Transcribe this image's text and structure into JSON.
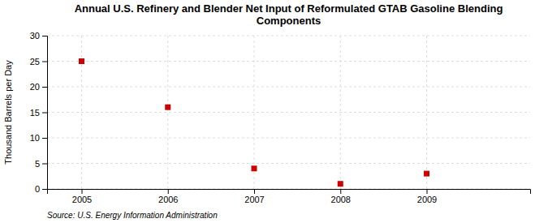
{
  "chart_data": {
    "type": "scatter",
    "title": "Annual U.S. Refinery and Blender Net Input of Reformulated GTAB Gasoline Blending\nComponents",
    "ylabel": "Thousand Barrels per Day",
    "source": "Source: U.S. Energy Information Administration",
    "x": [
      2005,
      2006,
      2007,
      2008,
      2009
    ],
    "values": [
      25,
      16,
      4,
      1,
      3
    ],
    "xlim": [
      2004.6,
      2010.2
    ],
    "xticks": [
      2005,
      2006,
      2007,
      2008,
      2009
    ],
    "ylim": [
      0,
      30
    ],
    "yticks": [
      0,
      5,
      10,
      15,
      20,
      25,
      30
    ],
    "color": "#cc0000",
    "marker": "square",
    "grid": true
  }
}
